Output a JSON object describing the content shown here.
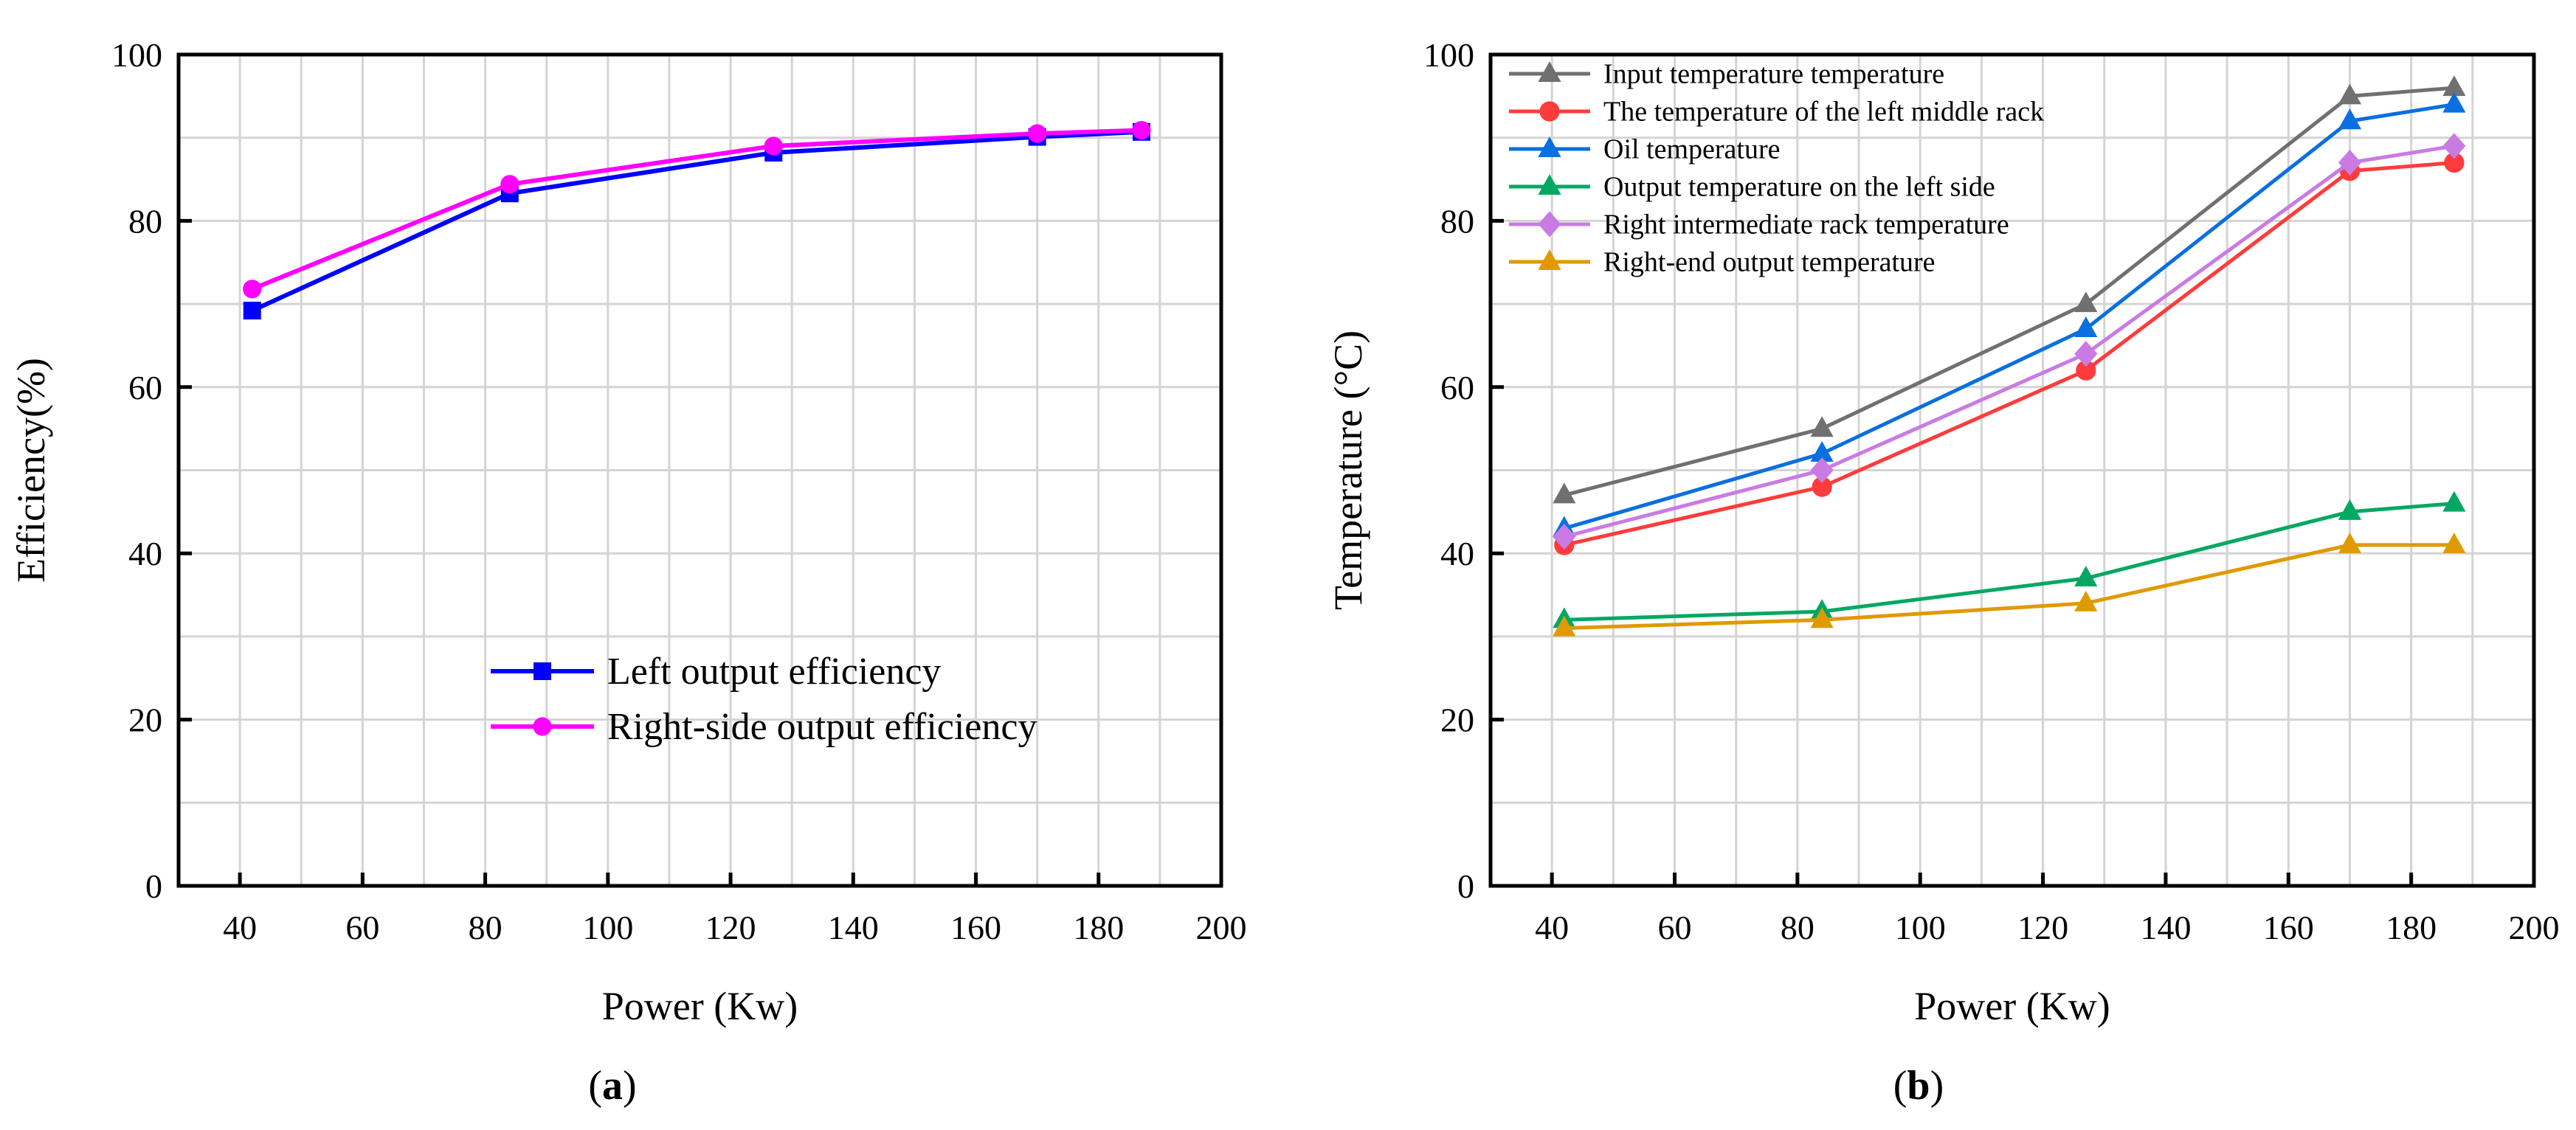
{
  "chart_data": [
    {
      "type": "line",
      "panel_label": "(a)",
      "panel_letter": "a",
      "title": "",
      "xlabel": "Power (Kw)",
      "ylabel": "Efficiency(%)",
      "xlim": [
        30,
        200
      ],
      "ylim": [
        0,
        100
      ],
      "xticks": [
        40,
        60,
        80,
        100,
        120,
        140,
        160,
        180,
        200
      ],
      "yticks": [
        0,
        20,
        40,
        60,
        80,
        100
      ],
      "grid": true,
      "legend_position": "bottom-right",
      "x": [
        42,
        84,
        127,
        170,
        187
      ],
      "series": [
        {
          "name": "Left output efficiency",
          "color": "#0000ff",
          "marker": "square",
          "values": [
            69.2,
            83.3,
            88.2,
            90.1,
            90.7
          ]
        },
        {
          "name": "Right-side output efficiency",
          "color": "#ff00ff",
          "marker": "circle",
          "values": [
            71.8,
            84.4,
            89.0,
            90.5,
            90.9
          ]
        }
      ]
    },
    {
      "type": "line",
      "panel_label": "(b)",
      "panel_letter": "b",
      "title": "",
      "xlabel": "Power (Kw)",
      "ylabel": "Temperature (°C)",
      "xlim": [
        30,
        200
      ],
      "ylim": [
        0,
        100
      ],
      "xticks": [
        40,
        60,
        80,
        100,
        120,
        140,
        160,
        180,
        200
      ],
      "yticks": [
        0,
        20,
        40,
        60,
        80,
        100
      ],
      "grid": true,
      "legend_position": "top-left",
      "x": [
        42,
        84,
        127,
        170,
        187
      ],
      "series": [
        {
          "name": "Input temperature temperature",
          "color": "#707070",
          "marker": "triangle",
          "values": [
            47,
            55,
            70,
            95,
            96
          ]
        },
        {
          "name": "The temperature of the left middle rack",
          "color": "#ff3b3b",
          "marker": "circle",
          "values": [
            41,
            48,
            62,
            86,
            87
          ]
        },
        {
          "name": "Oil temperature",
          "color": "#0a6fe0",
          "marker": "triangle",
          "values": [
            43,
            52,
            67,
            92,
            94
          ]
        },
        {
          "name": "Output temperature on the left side",
          "color": "#00a862",
          "marker": "triangle",
          "values": [
            32,
            33,
            37,
            45,
            46
          ]
        },
        {
          "name": "Right intermediate rack temperature",
          "color": "#c97be3",
          "marker": "diamond",
          "values": [
            42,
            50,
            64,
            87,
            89
          ]
        },
        {
          "name": "Right-end output temperature",
          "color": "#e09a00",
          "marker": "triangle",
          "values": [
            31,
            32,
            34,
            41,
            41
          ]
        }
      ]
    }
  ]
}
